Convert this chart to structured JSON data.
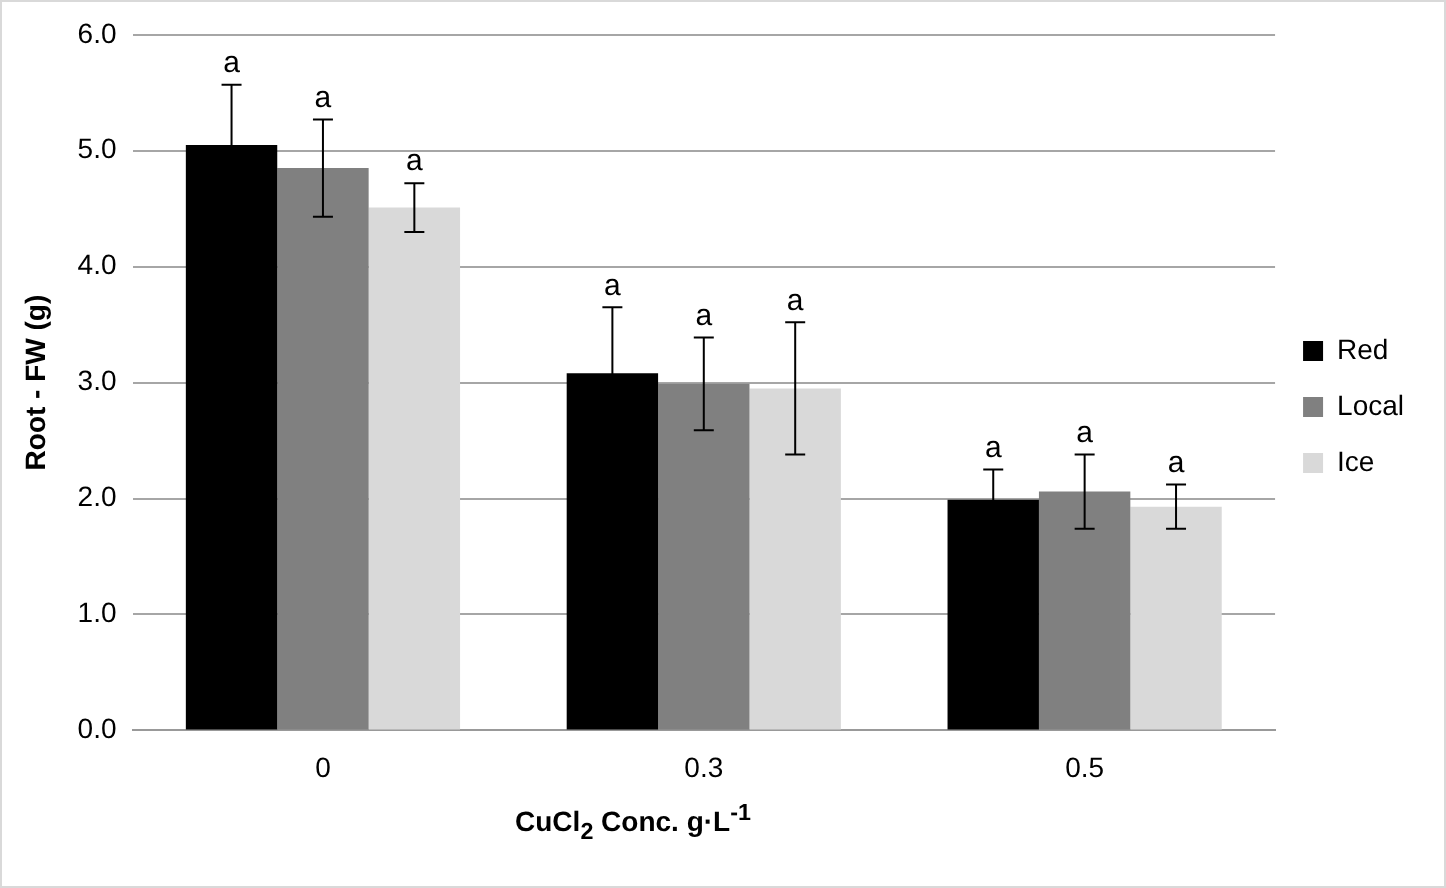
{
  "chart_data": {
    "type": "bar",
    "xlabel": "CuCl$_{2}$  Conc. g·L$^{-1}$",
    "ylabel": "Root - FW (g)",
    "categories": [
      "0",
      "0.3",
      "0.5"
    ],
    "series": [
      {
        "name": "Red",
        "color": "#000000",
        "values": [
          5.05,
          3.08,
          1.99
        ],
        "errors": [
          0.52,
          0.57,
          0.26
        ],
        "value_labels": [
          "a",
          "a",
          "a"
        ]
      },
      {
        "name": "Local",
        "color": "#808080",
        "values": [
          4.85,
          2.99,
          2.06
        ],
        "errors": [
          0.42,
          0.4,
          0.32
        ],
        "value_labels": [
          "a",
          "a",
          "a"
        ]
      },
      {
        "name": "Ice",
        "color": "#d9d9d9",
        "values": [
          4.51,
          2.95,
          1.93
        ],
        "errors": [
          0.21,
          0.57,
          0.19
        ],
        "value_labels": [
          "a",
          "a",
          "a"
        ]
      }
    ],
    "ylim": [
      0,
      6
    ],
    "yticks": [
      {
        "value": 0,
        "label": "0.0"
      },
      {
        "value": 1,
        "label": "1.0"
      },
      {
        "value": 2,
        "label": "2.0"
      },
      {
        "value": 3,
        "label": "3.0"
      },
      {
        "value": 4,
        "label": "4.0"
      },
      {
        "value": 5,
        "label": "5.0"
      },
      {
        "value": 6,
        "label": "6.0"
      }
    ],
    "grid": "y",
    "legend": "right"
  }
}
